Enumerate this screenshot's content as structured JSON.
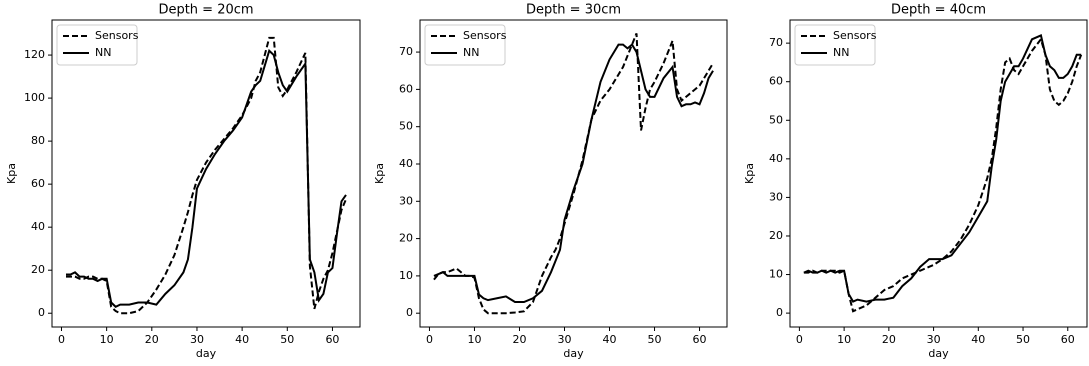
{
  "chart_data": [
    {
      "type": "line",
      "title": "Depth = 20cm",
      "x_label": "day",
      "y_label": "Kpa",
      "legend": "upper left",
      "x": [
        1,
        2,
        3,
        4,
        5,
        6,
        7,
        8,
        9,
        10,
        11,
        12,
        13,
        15,
        17,
        19,
        21,
        23,
        25,
        27,
        28,
        29,
        30,
        32,
        34,
        36,
        38,
        40,
        42,
        43,
        44,
        45,
        46,
        47,
        48,
        49,
        50,
        52,
        54,
        55,
        56,
        57,
        58,
        59,
        60,
        61,
        62,
        63
      ],
      "series": [
        {
          "name": "Sensors",
          "color": "#000000",
          "linestyle": "dashed",
          "values": [
            17,
            17,
            17,
            16,
            16,
            17,
            17,
            16,
            16,
            15,
            3,
            1,
            0,
            0,
            1,
            5,
            11,
            18,
            27,
            40,
            47,
            55,
            62,
            70,
            76,
            81,
            86,
            92,
            100,
            108,
            112,
            120,
            128,
            128,
            105,
            101,
            104,
            112,
            121,
            22,
            2,
            10,
            16,
            20,
            28,
            38,
            48,
            53
          ]
        },
        {
          "name": "NN",
          "color": "#000000",
          "linestyle": "solid",
          "values": [
            18,
            18,
            19,
            17,
            17,
            16,
            16,
            15,
            16,
            16,
            5,
            3,
            4,
            4,
            5,
            5,
            4,
            9,
            13,
            19,
            25,
            40,
            58,
            67,
            74,
            80,
            85,
            91,
            103,
            106,
            108,
            115,
            122,
            120,
            112,
            106,
            103,
            110,
            116,
            25,
            19,
            6,
            9,
            19,
            21,
            37,
            52,
            55
          ]
        }
      ],
      "xlim": [
        -2.1,
        66.1
      ],
      "xticks": [
        0,
        10,
        20,
        30,
        40,
        50,
        60
      ],
      "ylim": [
        -6.4,
        136.3
      ],
      "yticks": [
        0,
        20,
        40,
        60,
        80,
        100,
        120
      ]
    },
    {
      "type": "line",
      "title": "Depth = 30cm",
      "x_label": "day",
      "y_label": "Kpa",
      "legend": "upper left",
      "x": [
        1,
        2,
        3,
        4,
        5,
        6,
        7,
        8,
        9,
        10,
        11,
        12,
        13,
        15,
        17,
        19,
        21,
        23,
        25,
        27,
        28,
        29,
        30,
        32,
        34,
        36,
        38,
        40,
        42,
        43,
        44,
        45,
        46,
        47,
        48,
        49,
        50,
        52,
        54,
        55,
        56,
        57,
        58,
        59,
        60,
        61,
        62,
        63
      ],
      "series": [
        {
          "name": "Sensors",
          "color": "#000000",
          "linestyle": "dashed",
          "values": [
            9,
            10.5,
            11,
            11,
            11.5,
            12,
            11,
            10,
            10,
            9.5,
            4,
            1,
            0,
            0,
            0,
            0.2,
            0.5,
            3,
            10,
            15,
            17,
            20,
            24,
            32,
            41,
            52,
            57,
            60,
            64,
            66,
            69,
            72,
            75,
            49,
            55,
            60,
            62,
            67,
            73,
            60,
            57,
            58,
            59,
            60,
            61,
            63,
            65,
            67
          ]
        },
        {
          "name": "NN",
          "color": "#000000",
          "linestyle": "solid",
          "values": [
            10,
            10.5,
            11,
            10,
            10,
            10,
            10,
            10,
            10,
            10,
            5,
            4,
            3.5,
            4,
            4.5,
            3,
            3,
            4,
            6,
            11,
            14,
            17,
            25,
            33,
            40,
            52,
            62,
            68,
            72,
            72,
            71,
            72,
            70,
            65,
            60,
            58,
            58,
            63,
            66,
            58,
            55.5,
            56,
            56,
            56.5,
            56,
            59,
            63,
            65
          ]
        }
      ],
      "xlim": [
        -2.1,
        66.1
      ],
      "xticks": [
        0,
        10,
        20,
        30,
        40,
        50,
        60
      ],
      "ylim": [
        -3.7,
        78.6
      ],
      "yticks": [
        0,
        10,
        20,
        30,
        40,
        50,
        60,
        70
      ]
    },
    {
      "type": "line",
      "title": "Depth = 40cm",
      "x_label": "day",
      "y_label": "Kpa",
      "legend": "upper left",
      "x": [
        1,
        2,
        3,
        4,
        5,
        6,
        7,
        8,
        9,
        10,
        11,
        12,
        13,
        15,
        17,
        19,
        21,
        23,
        25,
        27,
        28,
        29,
        30,
        32,
        34,
        36,
        38,
        40,
        42,
        43,
        44,
        45,
        46,
        47,
        48,
        49,
        50,
        52,
        54,
        55,
        56,
        57,
        58,
        59,
        60,
        61,
        62,
        63
      ],
      "series": [
        {
          "name": "Sensors",
          "color": "#000000",
          "linestyle": "dashed",
          "values": [
            10.5,
            10.5,
            11,
            10.5,
            11,
            11,
            11,
            11,
            10.5,
            11,
            5,
            0.5,
            1,
            2,
            4,
            6,
            7,
            9,
            10,
            11,
            11.5,
            12,
            12.5,
            14,
            16,
            19,
            23,
            28,
            35,
            40,
            48,
            58,
            65,
            66,
            63,
            62,
            64,
            68,
            71,
            67,
            58,
            55,
            54,
            55,
            57,
            60,
            64,
            67
          ]
        },
        {
          "name": "NN",
          "color": "#000000",
          "linestyle": "solid",
          "values": [
            10.5,
            11,
            10.5,
            10.5,
            11,
            10.5,
            11,
            10.5,
            11,
            11,
            5,
            3,
            3.5,
            3,
            3.5,
            3.5,
            4,
            7,
            9,
            12,
            13,
            14,
            14,
            14,
            15,
            18,
            21,
            25,
            29,
            38,
            45,
            55,
            60,
            62,
            64,
            64,
            66,
            71,
            72,
            67,
            64,
            63,
            61,
            61,
            62,
            64,
            67,
            67
          ]
        }
      ],
      "xlim": [
        -2.1,
        64.3
      ],
      "xticks": [
        0,
        10,
        20,
        30,
        40,
        50,
        60
      ],
      "ylim": [
        -3.6,
        76
      ],
      "yticks": [
        0,
        10,
        20,
        30,
        40,
        50,
        60,
        70
      ]
    }
  ]
}
